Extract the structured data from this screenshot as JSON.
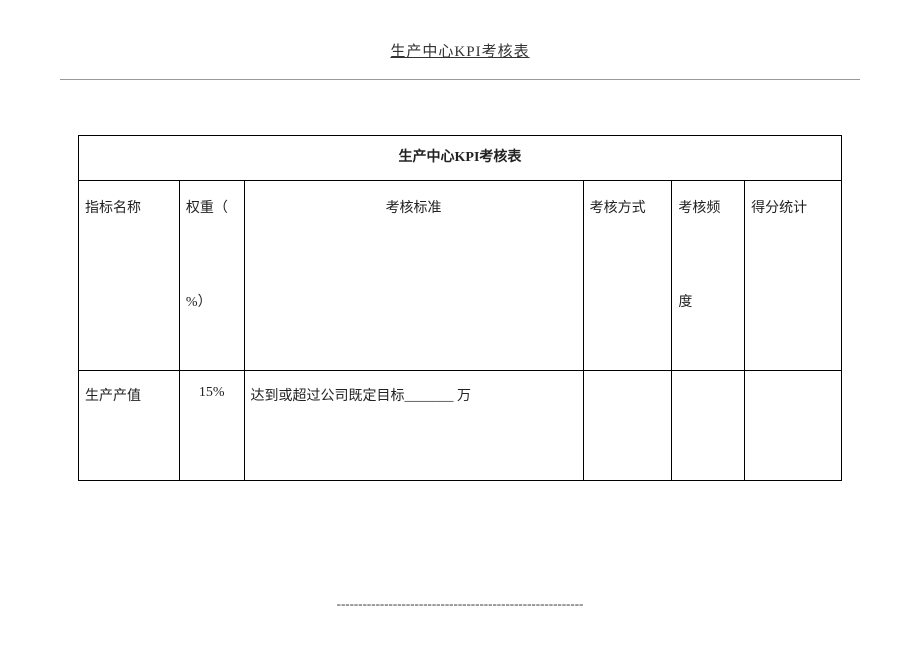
{
  "header": {
    "title": "生产中心KPI考核表"
  },
  "table": {
    "title": "生产中心KPI考核表",
    "columns": {
      "name": "指标名称",
      "weight_top": "权重（",
      "weight_bottom": "%）",
      "standard": "考核标准",
      "method": "考核方式",
      "freq_top": "考核频",
      "freq_bottom": "度",
      "score": "得分统计"
    },
    "rows": [
      {
        "name": "生产产值",
        "weight": "15%",
        "standard": "达到或超过公司既定目标_______ 万",
        "method": "",
        "freq": "",
        "score": ""
      }
    ]
  },
  "footer": {
    "dashes": "---------------------------------------------------------"
  }
}
